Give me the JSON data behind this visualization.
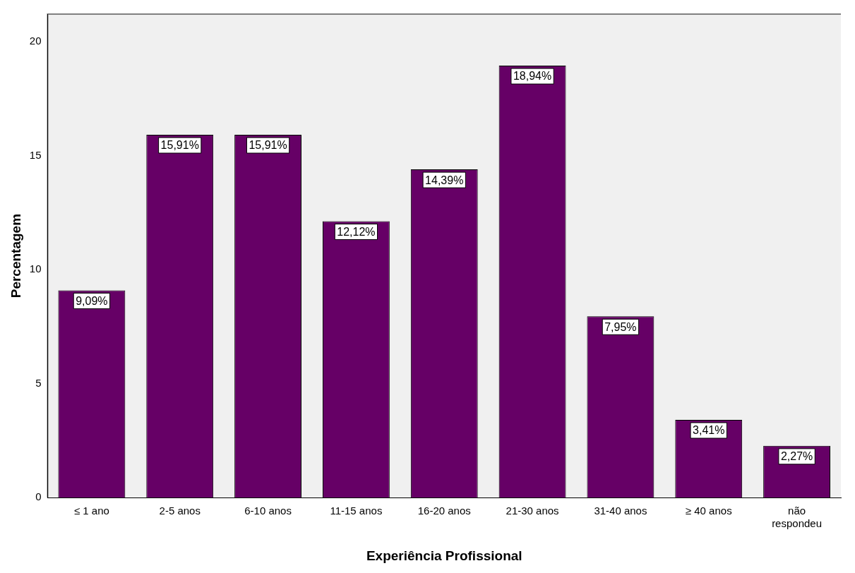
{
  "chart_data": {
    "type": "bar",
    "xlabel": "Experiência Profissional",
    "ylabel": "Percentagem",
    "categories": [
      "≤ 1 ano",
      "2-5 anos",
      "6-10 anos",
      "11-15 anos",
      "16-20 anos",
      "21-30 anos",
      "31-40 anos",
      "≥ 40 anos",
      "não\nrespondeu"
    ],
    "values": [
      9.09,
      15.91,
      15.91,
      12.12,
      14.39,
      18.94,
      7.95,
      3.41,
      2.27
    ],
    "value_labels": [
      "9,09%",
      "15,91%",
      "15,91%",
      "12,12%",
      "14,39%",
      "18,94%",
      "7,95%",
      "3,41%",
      "2,27%"
    ],
    "color": "#660066",
    "ylim": [
      0,
      21.2
    ],
    "yticks": [
      0,
      5,
      10,
      15,
      20
    ],
    "grid": false,
    "legend": false
  }
}
